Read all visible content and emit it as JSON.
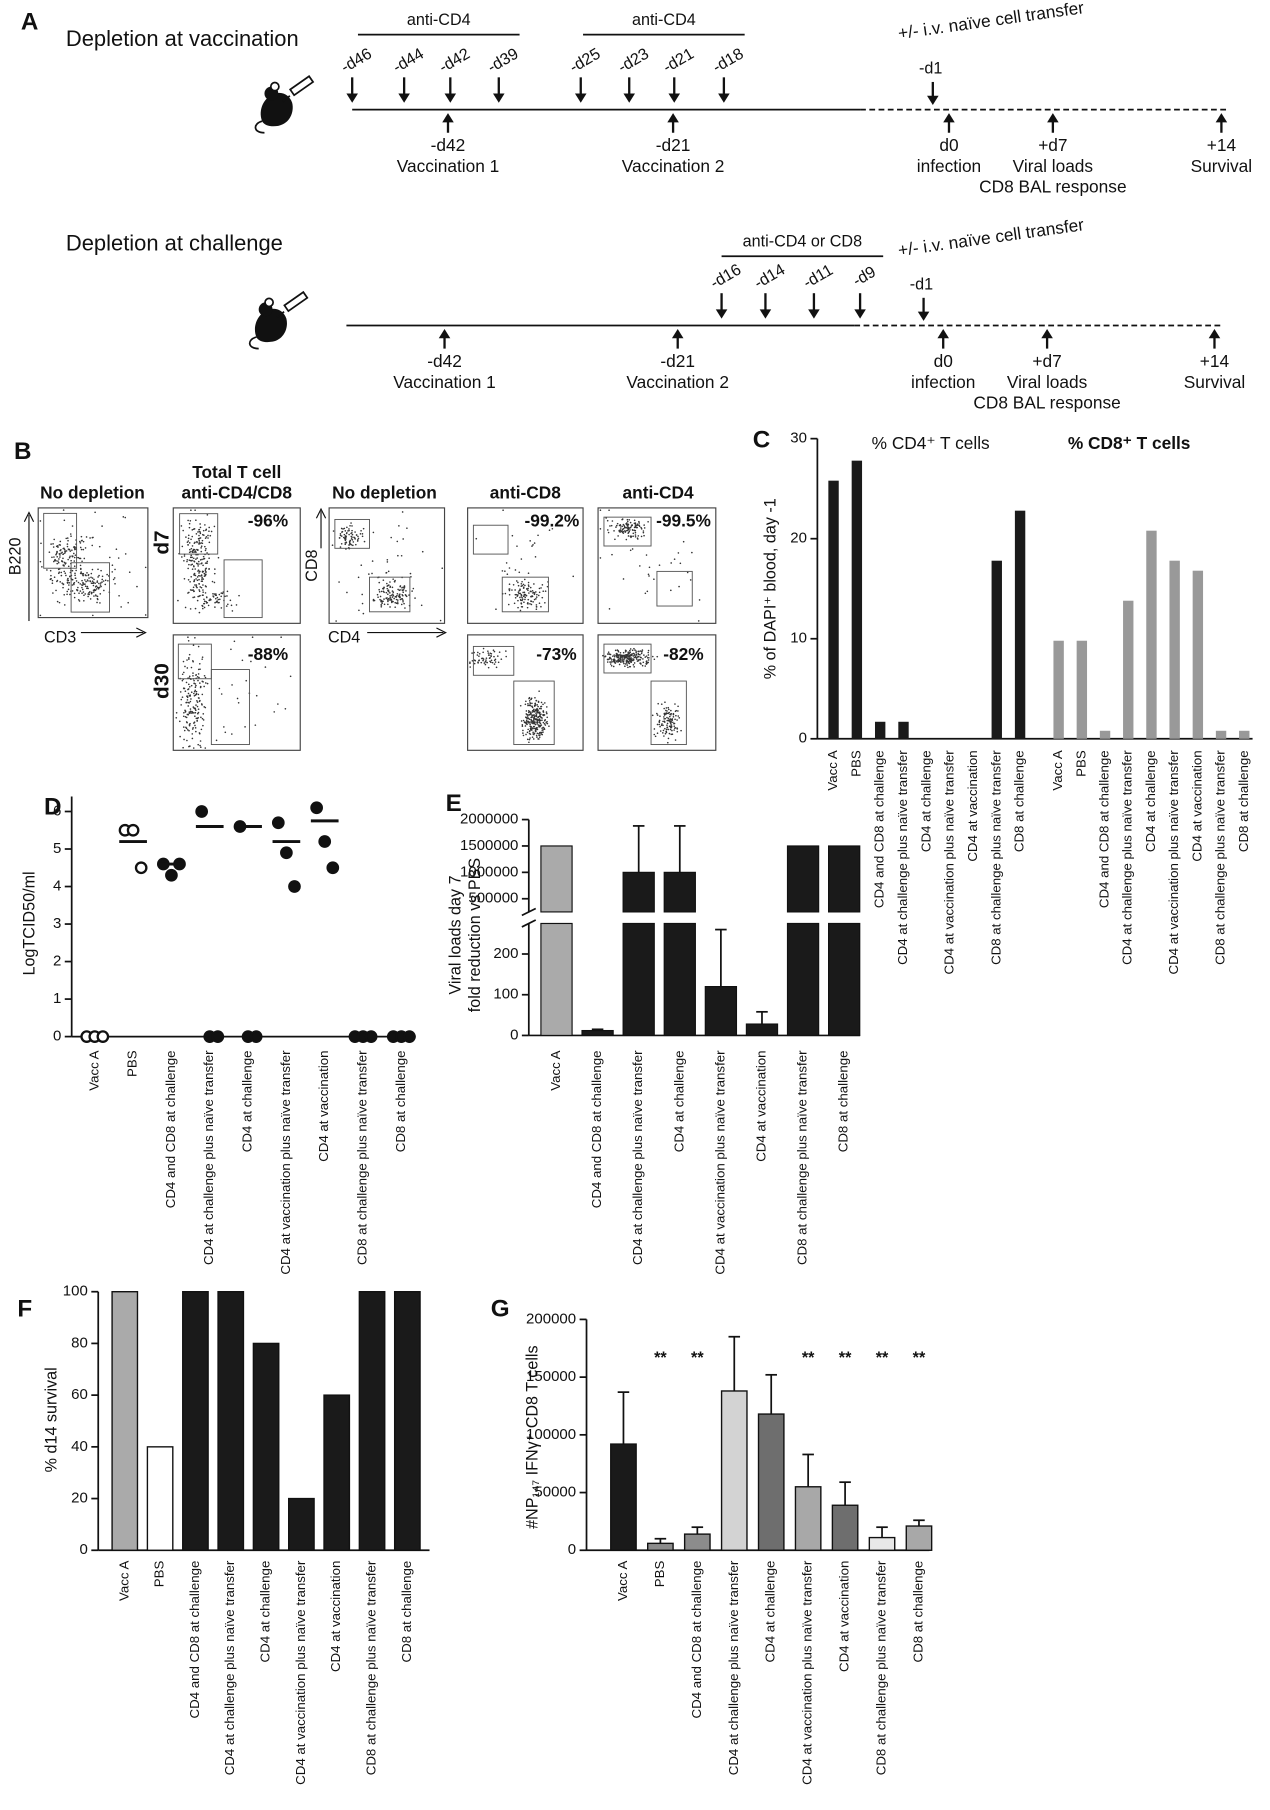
{
  "panel_a": {
    "label": "A",
    "rows": [
      {
        "title": "Depletion at vaccination",
        "depletions": [
          "anti-CD4",
          "anti-CD4"
        ],
        "depletion_days": [
          [
            "-d46",
            "-d44",
            "-d42",
            "-d39"
          ],
          [
            "-d25",
            "-d23",
            "-d21",
            "-d18"
          ]
        ],
        "transfer": "+/- i.v. naïve cell transfer",
        "transfer_day": "-d1",
        "events": [
          [
            "-d42",
            "Vaccination 1"
          ],
          [
            "-d21",
            "Vaccination 2"
          ],
          [
            "d0",
            "infection"
          ],
          [
            "+d7",
            "Viral loads",
            "CD8 BAL response"
          ],
          [
            "+14",
            "Survival"
          ]
        ]
      },
      {
        "title": "Depletion at challenge",
        "depletions": [
          "anti-CD4 or CD8"
        ],
        "depletion_days": [
          [
            "-d16",
            "-d14",
            "-d11",
            "-d9"
          ]
        ],
        "transfer": "+/- i.v. naïve cell transfer",
        "transfer_day": "-d1",
        "events": [
          [
            "-d42",
            "Vaccination 1"
          ],
          [
            "-d21",
            "Vaccination 2"
          ],
          [
            "d0",
            "infection"
          ],
          [
            "+d7",
            "Viral loads",
            "CD8 BAL response"
          ],
          [
            "+14",
            "Survival"
          ]
        ]
      }
    ]
  },
  "panel_b": {
    "label": "B",
    "titles": [
      [
        "No depletion"
      ],
      [
        "Total T cell",
        "anti-CD4/CD8"
      ],
      [
        "No depletion"
      ],
      [
        "anti-CD8"
      ],
      [
        "anti-CD4"
      ]
    ],
    "row_labels": [
      "d7",
      "d30"
    ],
    "axis_labels": [
      [
        "B220",
        "CD3"
      ],
      [
        "CD8",
        "CD4"
      ]
    ],
    "reductions": [
      [
        "-96%",
        "-88%"
      ],
      [
        "-99.2%",
        "-73%"
      ],
      [
        "-99.5%",
        "-82%"
      ]
    ]
  },
  "chart_data": [
    {
      "panel": "C",
      "type": "bar",
      "y_label": "% of DAPI⁺ blood, day -1",
      "categories": [
        "Vacc A",
        "PBS",
        "CD4 and CD8 at challenge",
        "CD4 at challenge plus naïve transfer",
        "CD4 at challenge",
        "CD4 at vaccination plus naïve transfer",
        "CD4 at vaccination",
        "CD8 at challenge plus naïve transfer",
        "CD8 at challenge"
      ],
      "series": [
        {
          "name": "% CD4⁺ T cells",
          "color": "#1a1a1a",
          "values": [
            25.8,
            27.8,
            1.7,
            1.7,
            0,
            0,
            0,
            17.8,
            22.8
          ]
        },
        {
          "name": "% CD8⁺ T cells",
          "color": "#999999",
          "values": [
            9.8,
            9.8,
            0.8,
            13.8,
            20.8,
            17.8,
            16.8,
            0.8,
            0.8
          ]
        }
      ],
      "ylim": [
        0,
        30
      ],
      "yticks": [
        0,
        10,
        20,
        30
      ]
    },
    {
      "panel": "D",
      "type": "scatter",
      "y_label": "LogTCID50/ml",
      "categories": [
        "Vacc A",
        "PBS",
        "CD4 and CD8 at challenge",
        "CD4 at challenge plus naïve transfer",
        "CD4 at challenge",
        "CD4 at vaccination plus naïve transfer",
        "CD4 at vaccination",
        "CD8 at challenge plus naïve transfer",
        "CD8 at challenge"
      ],
      "values": [
        [
          0,
          0,
          0
        ],
        [
          5.5,
          5.5,
          4.5
        ],
        [
          4.6,
          4.3,
          4.6
        ],
        [
          6,
          0,
          0
        ],
        [
          5.6,
          0,
          0
        ],
        [
          5.7,
          4.9,
          4
        ],
        [
          6.1,
          5.2,
          4.5
        ],
        [
          0,
          0,
          0
        ],
        [
          0,
          0,
          0
        ]
      ],
      "means": [
        null,
        5.2,
        4.6,
        5.6,
        5.6,
        5.2,
        5.75,
        null,
        null
      ],
      "open_markers": [
        true,
        true,
        false,
        false,
        false,
        false,
        false,
        false,
        false
      ],
      "color": "#111111",
      "ylim": [
        0,
        6.4
      ],
      "yticks": [
        0,
        1,
        2,
        3,
        4,
        5,
        6
      ]
    },
    {
      "panel": "E",
      "type": "bar",
      "y_label": [
        "Viral loads day 7",
        "fold reduction vs PBS"
      ],
      "categories": [
        "Vacc A",
        "CD4 and CD8 at challenge",
        "CD4 at challenge plus naïve transfer",
        "CD4 at challenge",
        "CD4 at vaccination plus naïve transfer",
        "CD4 at vaccination",
        "CD8 at challenge plus naïve transfer",
        "CD8 at challenge"
      ],
      "values": [
        1500000,
        12,
        1000000,
        1000000,
        120,
        28,
        1500000,
        1500000
      ],
      "errors": [
        null,
        3,
        880000,
        880000,
        140,
        30,
        null,
        null
      ],
      "colors": [
        "#aaaaaa",
        "#1a1a1a",
        "#1a1a1a",
        "#1a1a1a",
        "#1a1a1a",
        "#1a1a1a",
        "#1a1a1a",
        "#1a1a1a"
      ],
      "ylim": [
        [
          0,
          275
        ],
        [
          250000,
          2000000
        ]
      ],
      "yticks": [
        [
          0,
          100,
          200
        ],
        [
          500000,
          1000000,
          1500000,
          2000000
        ]
      ]
    },
    {
      "panel": "F",
      "type": "bar",
      "y_label": "% d14 survival",
      "categories": [
        "Vacc A",
        "PBS",
        "CD4 and CD8 at challenge",
        "CD4 at challenge plus naïve transfer",
        "CD4 at challenge",
        "CD4 at vaccination plus naïve transfer",
        "CD4 at vaccination",
        "CD8 at challenge plus naïve transfer",
        "CD8 at challenge"
      ],
      "values": [
        100,
        40,
        100,
        100,
        80,
        20,
        60,
        100,
        100
      ],
      "colors": [
        "#aaaaaa",
        "#ffffff",
        "#1a1a1a",
        "#1a1a1a",
        "#1a1a1a",
        "#1a1a1a",
        "#1a1a1a",
        "#1a1a1a",
        "#1a1a1a"
      ],
      "ylim": [
        0,
        100
      ],
      "yticks": [
        0,
        20,
        40,
        60,
        80,
        100
      ]
    },
    {
      "panel": "G",
      "type": "bar",
      "y_label": "#NP₁₄₇ IFNγ⁺ CD8 T cells",
      "categories": [
        "Vacc A",
        "PBS",
        "CD4 and CD8 at challenge",
        "CD4 at challenge plus naïve transfer",
        "CD4 at challenge",
        "CD4 at vaccination plus naïve transfer",
        "CD4 at vaccination",
        "CD8 at challenge plus naïve transfer",
        "CD8 at challenge"
      ],
      "values": [
        92000,
        6000,
        14000,
        138000,
        118000,
        55000,
        39000,
        11000,
        21000
      ],
      "errors": [
        45000,
        4000,
        6000,
        47000,
        34000,
        28000,
        20000,
        9000,
        5000
      ],
      "colors": [
        "#1a1a1a",
        "#8c8c8c",
        "#8c8c8c",
        "#d3d3d3",
        "#6e6e6e",
        "#a8a8a8",
        "#6e6e6e",
        "#e8e8e8",
        "#a8a8a8"
      ],
      "significance": [
        null,
        "**",
        "**",
        null,
        null,
        "**",
        "**",
        "**",
        "**"
      ],
      "ylim": [
        0,
        200000
      ],
      "yticks": [
        0,
        50000,
        100000,
        150000,
        200000
      ]
    }
  ]
}
